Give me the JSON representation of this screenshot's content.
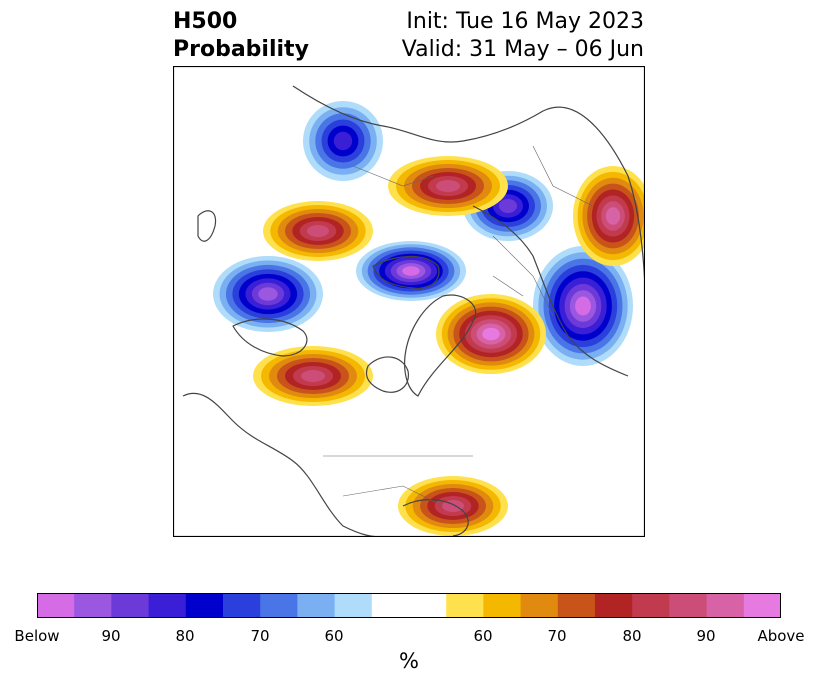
{
  "title": {
    "line1_left": "H500",
    "line2_left": "Probability",
    "line1_right": "Init: Tue 16 May 2023",
    "line2_right": "Valid: 31 May – 06 Jun"
  },
  "colorbar": {
    "unit": "%",
    "colors": [
      "#d66be6",
      "#9b57e0",
      "#6b3ad9",
      "#3a1fd6",
      "#0000cc",
      "#2a3fdc",
      "#4a75e6",
      "#7ab0f2",
      "#aedcfa",
      "#ffffff",
      "#ffffff",
      "#ffe14d",
      "#f5b800",
      "#e08a10",
      "#c8541a",
      "#b22424",
      "#c23a4e",
      "#cc4e78",
      "#d862a6",
      "#e67ae0"
    ],
    "tick_labels": [
      "Below",
      "90",
      "80",
      "70",
      "60",
      "60",
      "70",
      "80",
      "90",
      "Above"
    ]
  },
  "map": {
    "projection": "polar-stereographic-north",
    "anomalies": [
      {
        "sign": "below",
        "region": "central-canada-north",
        "max_probability": 80
      },
      {
        "sign": "below",
        "region": "north-pacific",
        "max_probability": 85
      },
      {
        "sign": "below",
        "region": "greenland-sea",
        "max_probability": 90
      },
      {
        "sign": "below",
        "region": "scandinavia-russia",
        "max_probability": 90
      },
      {
        "sign": "below",
        "region": "eastern-siberia-arctic",
        "max_probability": 75
      },
      {
        "sign": "above",
        "region": "alaska-bering",
        "max_probability": 80
      },
      {
        "sign": "above",
        "region": "western-russia",
        "max_probability": 95
      },
      {
        "sign": "above",
        "region": "central-asia",
        "max_probability": 80
      },
      {
        "sign": "above",
        "region": "east-asia",
        "max_probability": 85
      },
      {
        "sign": "above",
        "region": "north-atlantic-europe",
        "max_probability": 80
      },
      {
        "sign": "above",
        "region": "southeast-us-gulf",
        "max_probability": 80
      }
    ]
  }
}
